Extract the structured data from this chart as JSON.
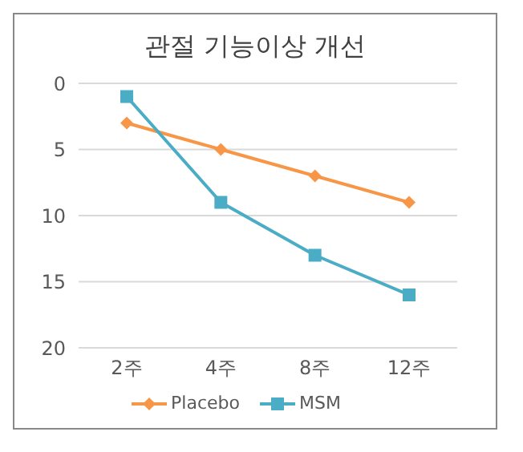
{
  "chart_data": {
    "type": "line",
    "title": "관절 기능이상 개선",
    "categories": [
      "2주",
      "4주",
      "8주",
      "12주"
    ],
    "series": [
      {
        "name": "Placebo",
        "color": "#f79646",
        "marker": "diamond",
        "values": [
          3,
          5,
          7,
          9
        ]
      },
      {
        "name": "MSM",
        "color": "#4bacc6",
        "marker": "square",
        "values": [
          1,
          9,
          13,
          16
        ]
      }
    ],
    "ylim": [
      20,
      0
    ],
    "yticks": [
      0,
      5,
      10,
      15,
      20
    ],
    "grid": "y",
    "legend": "bottom",
    "line_style": "solid"
  }
}
